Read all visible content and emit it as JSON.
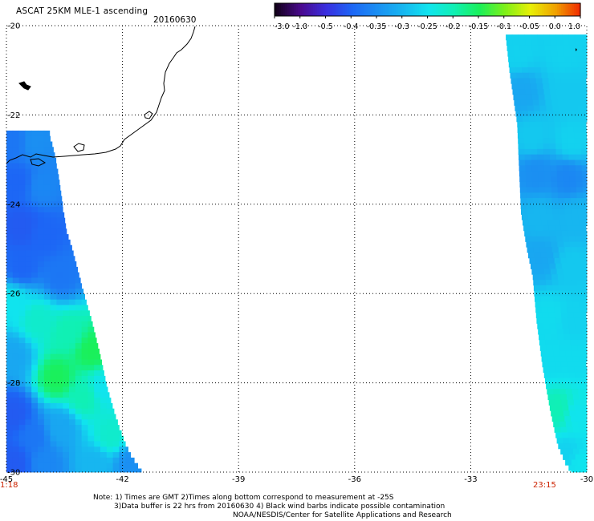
{
  "header": {
    "title": "ASCAT 25KM MLE-1 ascending",
    "date": "20160630"
  },
  "colorbar": {
    "tick_labels": [
      "-3.0",
      "-1.0",
      "-0.5",
      "-0.4",
      "-0.35",
      "-0.3",
      "-0.25",
      "-0.2",
      "-0.15",
      "-0.1",
      "-0.05",
      "0.0",
      "1.0"
    ],
    "colors": [
      "#12001a",
      "#4a0a8e",
      "#3a2fe0",
      "#1d66f5",
      "#1b8ff2",
      "#17b6f0",
      "#10e4ee",
      "#10f0b4",
      "#1af05a",
      "#7ef019",
      "#e8f006",
      "#f0a000",
      "#f02400"
    ]
  },
  "times": {
    "left": "1:18",
    "right": "23:15"
  },
  "footer": {
    "note_line1": "Note: 1) Times are GMT 2)Times along bottom correspond to measurement at -25S",
    "note_line2": "3)Data buffer is 22 hrs from 20160630 4) Black wind barbs indicate possible contamination",
    "credit": "NOAA/NESDIS/Center for Satellite Applications and Research"
  },
  "chart_data": {
    "type": "heatmap",
    "title": "ASCAT 25KM MLE-1 ascending",
    "x": {
      "range": [
        -45,
        -30
      ],
      "tick_labels": [
        "-45",
        "-42",
        "-39",
        "-36",
        "-33",
        "-30"
      ]
    },
    "y": {
      "range": [
        -30,
        -20
      ],
      "tick_labels": [
        "-20",
        "-22",
        "-24",
        "-26",
        "-28",
        "-30"
      ]
    },
    "grid": true,
    "colorscale": {
      "levels": [
        -3.0,
        -1.0,
        -0.5,
        -0.4,
        -0.35,
        -0.3,
        -0.25,
        -0.2,
        -0.15,
        -0.1,
        -0.05,
        0.0,
        1.0
      ]
    },
    "swaths": [
      {
        "name": "west swath",
        "lon_west": -45,
        "lat_top": -22.35,
        "east_edge": [
          [
            -22.35,
            -43.9
          ],
          [
            -23.1,
            -43.7
          ],
          [
            -23.7,
            -43.6
          ],
          [
            -24.6,
            -43.45
          ],
          [
            -25.0,
            -43.3
          ],
          [
            -25.5,
            -43.15
          ],
          [
            -26.0,
            -43.0
          ],
          [
            -26.6,
            -42.8
          ],
          [
            -27.3,
            -42.6
          ],
          [
            -28.1,
            -42.4
          ],
          [
            -28.7,
            -42.2
          ],
          [
            -29.2,
            -42.0
          ],
          [
            -29.6,
            -41.8
          ],
          [
            -30.0,
            -41.5
          ]
        ],
        "anchors": [
          {
            "lon": -44.8,
            "lat": -22.6,
            "v": -0.38
          },
          {
            "lon": -44.3,
            "lat": -22.6,
            "v": -0.35
          },
          {
            "lon": -44.7,
            "lat": -23.5,
            "v": -0.4
          },
          {
            "lon": -44.1,
            "lat": -23.6,
            "v": -0.36
          },
          {
            "lon": -44.6,
            "lat": -24.5,
            "v": -0.42
          },
          {
            "lon": -44.0,
            "lat": -24.7,
            "v": -0.4
          },
          {
            "lon": -44.6,
            "lat": -25.4,
            "v": -0.4
          },
          {
            "lon": -43.6,
            "lat": -25.6,
            "v": -0.38
          },
          {
            "lon": -44.8,
            "lat": -26.2,
            "v": -0.25
          },
          {
            "lon": -44.2,
            "lat": -26.6,
            "v": -0.22
          },
          {
            "lon": -43.4,
            "lat": -26.9,
            "v": -0.2
          },
          {
            "lon": -42.8,
            "lat": -27.3,
            "v": -0.15
          },
          {
            "lon": -44.8,
            "lat": -27.4,
            "v": -0.32
          },
          {
            "lon": -43.7,
            "lat": -27.9,
            "v": -0.15
          },
          {
            "lon": -43.0,
            "lat": -28.3,
            "v": -0.2
          },
          {
            "lon": -42.5,
            "lat": -28.1,
            "v": -0.25
          },
          {
            "lon": -44.8,
            "lat": -28.7,
            "v": -0.42
          },
          {
            "lon": -44.3,
            "lat": -29.2,
            "v": -0.38
          },
          {
            "lon": -43.6,
            "lat": -29.0,
            "v": -0.32
          },
          {
            "lon": -42.3,
            "lat": -29.2,
            "v": -0.22
          },
          {
            "lon": -44.8,
            "lat": -29.8,
            "v": -0.42
          },
          {
            "lon": -44.0,
            "lat": -29.8,
            "v": -0.36
          },
          {
            "lon": -42.7,
            "lat": -29.8,
            "v": -0.3
          },
          {
            "lon": -41.8,
            "lat": -29.8,
            "v": -0.35
          }
        ]
      },
      {
        "name": "east swath",
        "lon_east": -30,
        "lat_top": -20.2,
        "west_edge": [
          [
            -20.2,
            -32.1
          ],
          [
            -21.0,
            -32.0
          ],
          [
            -21.6,
            -31.9
          ],
          [
            -22.2,
            -31.8
          ],
          [
            -23.2,
            -31.75
          ],
          [
            -24.2,
            -31.7
          ],
          [
            -25.0,
            -31.55
          ],
          [
            -25.6,
            -31.4
          ],
          [
            -26.6,
            -31.3
          ],
          [
            -27.6,
            -31.15
          ],
          [
            -28.6,
            -30.95
          ],
          [
            -29.4,
            -30.75
          ],
          [
            -29.8,
            -30.55
          ],
          [
            -30.0,
            -30.4
          ]
        ],
        "anchors": [
          {
            "lon": -31.8,
            "lat": -20.6,
            "v": -0.27
          },
          {
            "lon": -30.6,
            "lat": -20.6,
            "v": -0.27
          },
          {
            "lon": -31.7,
            "lat": -21.5,
            "v": -0.32
          },
          {
            "lon": -30.5,
            "lat": -21.5,
            "v": -0.28
          },
          {
            "lon": -31.4,
            "lat": -22.5,
            "v": -0.28
          },
          {
            "lon": -30.4,
            "lat": -22.6,
            "v": -0.27
          },
          {
            "lon": -31.3,
            "lat": -23.3,
            "v": -0.35
          },
          {
            "lon": -30.5,
            "lat": -23.4,
            "v": -0.36
          },
          {
            "lon": -31.2,
            "lat": -24.3,
            "v": -0.3
          },
          {
            "lon": -30.3,
            "lat": -24.3,
            "v": -0.3
          },
          {
            "lon": -31.2,
            "lat": -25.2,
            "v": -0.32
          },
          {
            "lon": -30.4,
            "lat": -25.4,
            "v": -0.28
          },
          {
            "lon": -31.0,
            "lat": -26.5,
            "v": -0.26
          },
          {
            "lon": -30.3,
            "lat": -26.6,
            "v": -0.27
          },
          {
            "lon": -30.9,
            "lat": -27.5,
            "v": -0.26
          },
          {
            "lon": -30.3,
            "lat": -27.5,
            "v": -0.26
          },
          {
            "lon": -30.7,
            "lat": -28.6,
            "v": -0.2
          },
          {
            "lon": -30.3,
            "lat": -28.7,
            "v": -0.25
          },
          {
            "lon": -30.5,
            "lat": -29.6,
            "v": -0.27
          },
          {
            "lon": -30.2,
            "lat": -29.8,
            "v": -0.25
          }
        ]
      }
    ]
  }
}
